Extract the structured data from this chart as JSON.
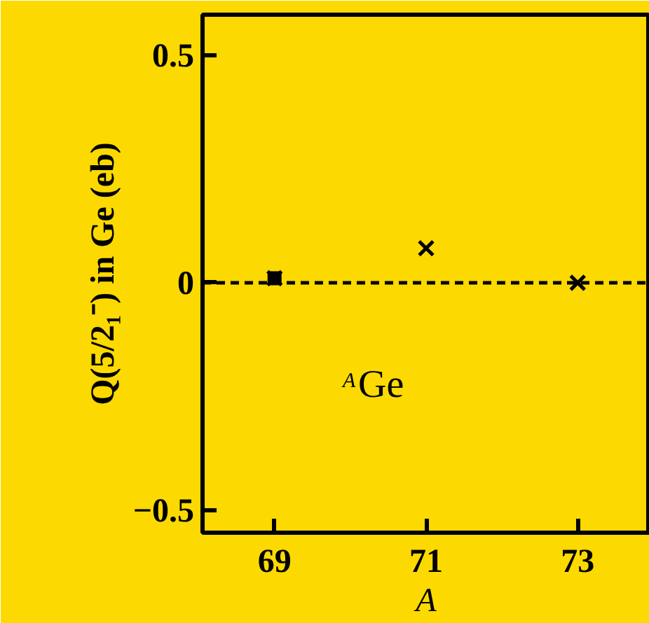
{
  "chart_data": {
    "type": "scatter",
    "xlabel": "A",
    "ylabel": "Q(5/2₁⁻) in Ge (eb)",
    "x": [
      69,
      71,
      73
    ],
    "series": [
      {
        "color": "#000000",
        "values": [
          0.01,
          0.076,
          0.0
        ],
        "marker": "cross"
      },
      {
        "color": "#000000",
        "x": [
          69
        ],
        "values": [
          0.01
        ],
        "marker": "square"
      }
    ],
    "xlim": [
      68.05,
      73.95
    ],
    "ylim": [
      -0.55,
      0.59
    ],
    "xticks": [
      69,
      71,
      73
    ],
    "yticks": [
      0.5,
      0,
      {
        "value": -0.5,
        "label": "−0.5"
      }
    ],
    "ref_lines": [
      {
        "axis": "y",
        "value": 0,
        "color": "#000000",
        "line_style": "dashed"
      }
    ],
    "annotations": [
      "$^{A}$Ge"
    ],
    "grid": false
  }
}
